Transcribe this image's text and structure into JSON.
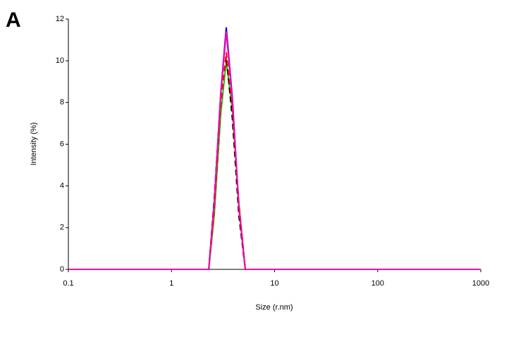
{
  "panel_label": "A",
  "chart_data": {
    "type": "line",
    "xlabel": "Size (r.nm)",
    "ylabel": "Intensity (%)",
    "xscale": "log",
    "x": [
      0.1,
      2.3,
      2.6,
      3.0,
      3.4,
      3.9,
      4.5,
      5.2,
      1000
    ],
    "series": [
      {
        "color": "#0000ff",
        "dashed": false,
        "values": [
          0,
          0,
          3.2,
          8.4,
          11.6,
          8.2,
          3.0,
          0,
          0
        ]
      },
      {
        "color": "#00cc00",
        "dashed": false,
        "values": [
          0,
          0,
          2.6,
          7.4,
          10.0,
          7.6,
          3.2,
          0,
          0
        ]
      },
      {
        "color": "#000000",
        "dashed": true,
        "values": [
          0,
          0,
          3.4,
          8.2,
          10.2,
          7.2,
          2.6,
          0,
          0
        ]
      },
      {
        "color": "#ff0000",
        "dashed": true,
        "values": [
          0,
          0,
          2.8,
          7.8,
          10.4,
          7.8,
          3.2,
          0,
          0
        ]
      },
      {
        "color": "#ff00aa",
        "dashed": false,
        "values": [
          0,
          0,
          3.2,
          8.3,
          11.4,
          8.1,
          3.0,
          0,
          0
        ]
      }
    ],
    "xlim": [
      0.1,
      1000
    ],
    "xticks": [
      0.1,
      1,
      10,
      100,
      1000
    ],
    "ylim": [
      0,
      12
    ],
    "yticks": [
      0,
      2,
      4,
      6,
      8,
      10,
      12
    ]
  }
}
